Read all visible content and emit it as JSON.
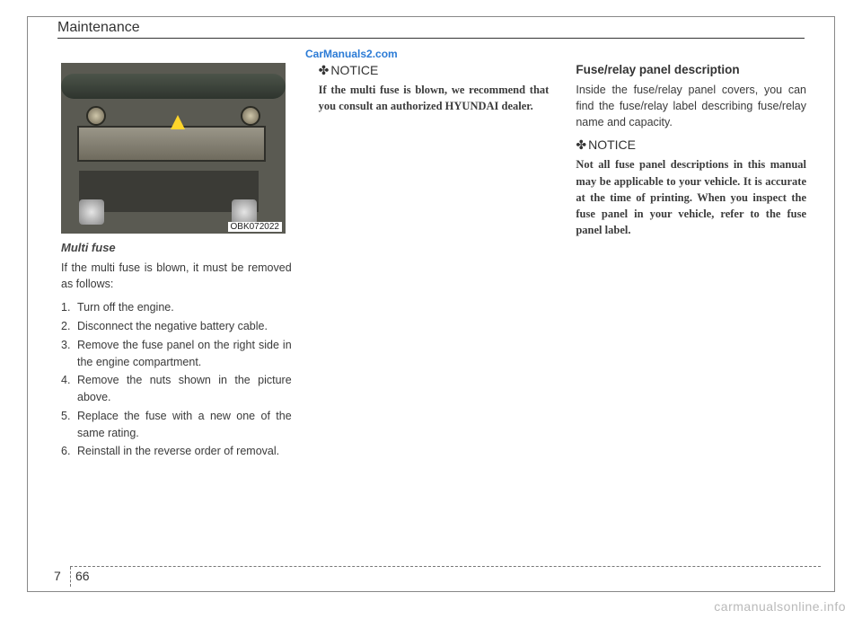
{
  "header": {
    "title": "Maintenance"
  },
  "watermark_top": "CarManuals2.com",
  "col1": {
    "figure_code": "OBK072022",
    "subhead": "Multi fuse",
    "intro": "If the multi fuse is blown, it must be removed as follows:",
    "steps": [
      "Turn off the engine.",
      "Disconnect the negative battery cable.",
      "Remove the fuse panel on the right side in the engine compartment.",
      "Remove the nuts shown in the picture above.",
      "Replace the fuse with a new one of the same rating.",
      "Reinstall in the reverse order of removal."
    ]
  },
  "col2": {
    "notice_head": "NOTICE",
    "notice_body": "If the multi fuse is blown, we recommend that you consult an authorized HYUNDAI dealer."
  },
  "col3": {
    "section_head": "Fuse/relay panel description",
    "section_body": "Inside the fuse/relay panel covers, you can find the fuse/relay label describing fuse/relay name and capacity.",
    "notice_head": "NOTICE",
    "notice_body": "Not all fuse panel descriptions in this manual may be applicable to your vehicle. It is accurate at the time of printing. When you inspect the fuse panel in your vehicle, refer to the fuse panel label."
  },
  "footer": {
    "chapter": "7",
    "page": "66"
  },
  "watermark_bottom": "carmanualsonline.info"
}
